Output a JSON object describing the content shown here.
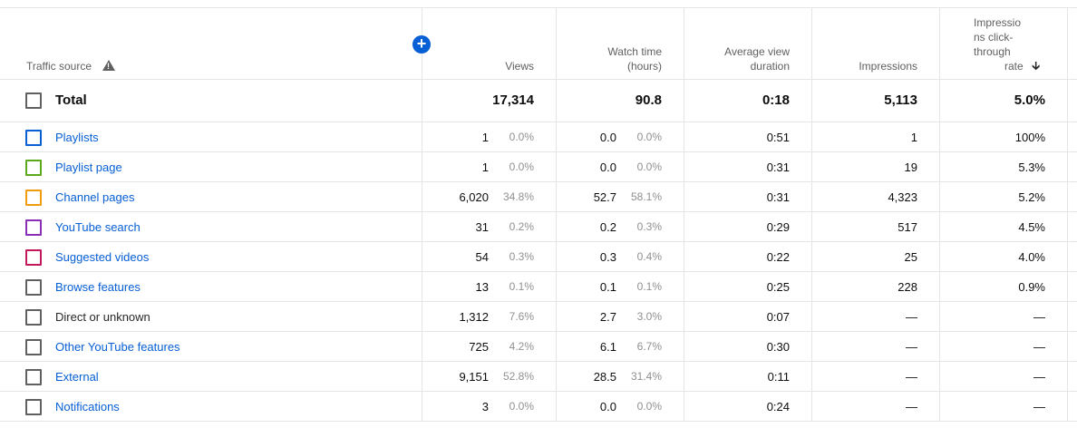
{
  "header": {
    "traffic_source": "Traffic source",
    "views": "Views",
    "watch_time_1": "Watch time",
    "watch_time_2": "(hours)",
    "avg_view_1": "Average view",
    "avg_view_2": "duration",
    "impressions": "Impressions",
    "ctr_1": "Impressio",
    "ctr_2": "ns click-",
    "ctr_3": "through",
    "ctr_4": "rate",
    "add_icon": "plus-circle-icon",
    "warning_icon": "warning-triangle-icon",
    "sort_icon": "arrow-down-icon"
  },
  "total": {
    "label": "Total",
    "views": "17,314",
    "watch_time": "90.8",
    "avg_duration": "0:18",
    "impressions": "5,113",
    "ctr": "5.0%"
  },
  "rows": [
    {
      "label": "Playlists",
      "color": "#065fd4",
      "link": true,
      "views": "1",
      "views_pct": "0.0%",
      "watch": "0.0",
      "watch_pct": "0.0%",
      "avg": "0:51",
      "impr": "1",
      "ctr": "100%"
    },
    {
      "label": "Playlist page",
      "color": "#5ba91b",
      "link": true,
      "views": "1",
      "views_pct": "0.0%",
      "watch": "0.0",
      "watch_pct": "0.0%",
      "avg": "0:31",
      "impr": "19",
      "ctr": "5.3%"
    },
    {
      "label": "Channel pages",
      "color": "#f29b0d",
      "link": true,
      "views": "6,020",
      "views_pct": "34.8%",
      "watch": "52.7",
      "watch_pct": "58.1%",
      "avg": "0:31",
      "impr": "4,323",
      "ctr": "5.2%"
    },
    {
      "label": "YouTube search",
      "color": "#8c2eb5",
      "link": true,
      "views": "31",
      "views_pct": "0.2%",
      "watch": "0.2",
      "watch_pct": "0.3%",
      "avg": "0:29",
      "impr": "517",
      "ctr": "4.5%"
    },
    {
      "label": "Suggested videos",
      "color": "#c2185b",
      "link": true,
      "views": "54",
      "views_pct": "0.3%",
      "watch": "0.3",
      "watch_pct": "0.4%",
      "avg": "0:22",
      "impr": "25",
      "ctr": "4.0%"
    },
    {
      "label": "Browse features",
      "color": "#606060",
      "link": true,
      "views": "13",
      "views_pct": "0.1%",
      "watch": "0.1",
      "watch_pct": "0.1%",
      "avg": "0:25",
      "impr": "228",
      "ctr": "0.9%"
    },
    {
      "label": "Direct or unknown",
      "color": "#606060",
      "link": false,
      "views": "1,312",
      "views_pct": "7.6%",
      "watch": "2.7",
      "watch_pct": "3.0%",
      "avg": "0:07",
      "impr": "—",
      "ctr": "—"
    },
    {
      "label": "Other YouTube features",
      "color": "#606060",
      "link": true,
      "views": "725",
      "views_pct": "4.2%",
      "watch": "6.1",
      "watch_pct": "6.7%",
      "avg": "0:30",
      "impr": "—",
      "ctr": "—"
    },
    {
      "label": "External",
      "color": "#606060",
      "link": true,
      "views": "9,151",
      "views_pct": "52.8%",
      "watch": "28.5",
      "watch_pct": "31.4%",
      "avg": "0:11",
      "impr": "—",
      "ctr": "—"
    },
    {
      "label": "Notifications",
      "color": "#606060",
      "link": true,
      "views": "3",
      "views_pct": "0.0%",
      "watch": "0.0",
      "watch_pct": "0.0%",
      "avg": "0:24",
      "impr": "—",
      "ctr": "—"
    }
  ]
}
